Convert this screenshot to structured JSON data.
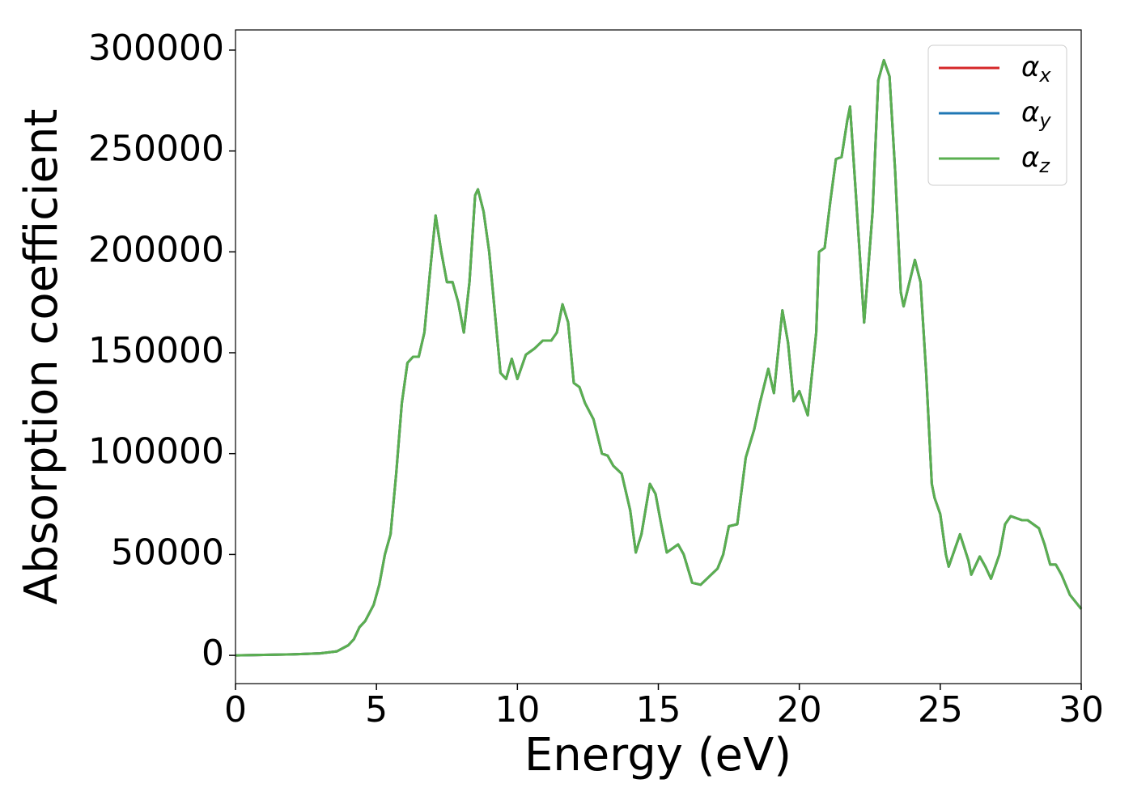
{
  "chart_data": {
    "type": "line",
    "xlabel": "Energy (eV)",
    "ylabel": "Absorption coefficient",
    "x": [
      0,
      2,
      3,
      3.6,
      4,
      4.2,
      4.4,
      4.6,
      4.9,
      5.1,
      5.3,
      5.5,
      5.7,
      5.9,
      6.1,
      6.3,
      6.5,
      6.7,
      6.9,
      7.1,
      7.3,
      7.5,
      7.7,
      7.9,
      8.1,
      8.3,
      8.5,
      8.6,
      8.8,
      9.0,
      9.2,
      9.4,
      9.6,
      9.8,
      10.0,
      10.3,
      10.6,
      10.9,
      11.2,
      11.4,
      11.6,
      11.8,
      12.0,
      12.2,
      12.4,
      12.7,
      13.0,
      13.2,
      13.4,
      13.7,
      14.0,
      14.2,
      14.4,
      14.7,
      14.9,
      15.1,
      15.3,
      15.7,
      15.9,
      16.2,
      16.5,
      16.8,
      17.1,
      17.3,
      17.5,
      17.8,
      18.1,
      18.4,
      18.6,
      18.9,
      19.1,
      19.4,
      19.6,
      19.8,
      20.0,
      20.3,
      20.6,
      20.7,
      20.9,
      21.1,
      21.3,
      21.5,
      21.7,
      21.8,
      22.0,
      22.3,
      22.6,
      22.8,
      23.0,
      23.2,
      23.4,
      23.6,
      23.7,
      24.1,
      24.3,
      24.5,
      24.7,
      24.8,
      25.0,
      25.2,
      25.3,
      25.7,
      26.0,
      26.1,
      26.4,
      26.6,
      26.8,
      27.1,
      27.3,
      27.5,
      27.9,
      28.1,
      28.3,
      28.5,
      28.7,
      28.9,
      29.1,
      29.3,
      29.6,
      30.0
    ],
    "series": [
      {
        "name": "αx",
        "color": "#d62728",
        "values": [
          0,
          500,
          1000,
          2000,
          5000,
          8000,
          14000,
          17000,
          25000,
          35000,
          50000,
          60000,
          90000,
          125000,
          145000,
          148000,
          148000,
          160000,
          190000,
          218000,
          200000,
          185000,
          185000,
          175000,
          160000,
          185000,
          228000,
          231000,
          220000,
          200000,
          170000,
          140000,
          137000,
          147000,
          137000,
          149000,
          152000,
          156000,
          156000,
          160000,
          174000,
          165000,
          135000,
          133000,
          125000,
          117000,
          100000,
          99000,
          94000,
          90000,
          72000,
          51000,
          60000,
          85000,
          80000,
          65000,
          51000,
          55000,
          50000,
          36000,
          35000,
          39000,
          43000,
          50000,
          64000,
          65000,
          98000,
          112000,
          125000,
          142000,
          130000,
          171000,
          155000,
          126000,
          131000,
          119000,
          160000,
          200000,
          202000,
          225000,
          246000,
          247000,
          265000,
          272000,
          230000,
          165000,
          220000,
          285000,
          295000,
          287000,
          240000,
          180000,
          173000,
          196000,
          185000,
          140000,
          85000,
          78000,
          70000,
          50000,
          44000,
          60000,
          47000,
          40000,
          49000,
          44000,
          38000,
          50000,
          65000,
          69000,
          67000,
          67000,
          65000,
          63000,
          55000,
          45000,
          45000,
          40000,
          30000,
          23000
        ]
      },
      {
        "name": "αy",
        "color": "#1f77b4",
        "values": [
          0,
          500,
          1000,
          2000,
          5000,
          8000,
          14000,
          17000,
          25000,
          35000,
          50000,
          60000,
          90000,
          125000,
          145000,
          148000,
          148000,
          160000,
          190000,
          218000,
          200000,
          185000,
          185000,
          175000,
          160000,
          185000,
          228000,
          231000,
          220000,
          200000,
          170000,
          140000,
          137000,
          147000,
          137000,
          149000,
          152000,
          156000,
          156000,
          160000,
          174000,
          165000,
          135000,
          133000,
          125000,
          117000,
          100000,
          99000,
          94000,
          90000,
          72000,
          51000,
          60000,
          85000,
          80000,
          65000,
          51000,
          55000,
          50000,
          36000,
          35000,
          39000,
          43000,
          50000,
          64000,
          65000,
          98000,
          112000,
          125000,
          142000,
          130000,
          171000,
          155000,
          126000,
          131000,
          119000,
          160000,
          200000,
          202000,
          225000,
          246000,
          247000,
          265000,
          272000,
          230000,
          165000,
          220000,
          285000,
          295000,
          287000,
          240000,
          180000,
          173000,
          196000,
          185000,
          140000,
          85000,
          78000,
          70000,
          50000,
          44000,
          60000,
          47000,
          40000,
          49000,
          44000,
          38000,
          50000,
          65000,
          69000,
          67000,
          67000,
          65000,
          63000,
          55000,
          45000,
          45000,
          40000,
          30000,
          23000
        ]
      },
      {
        "name": "αz",
        "color": "#5aaf50",
        "values": [
          0,
          500,
          1000,
          2000,
          5000,
          8000,
          14000,
          17000,
          25000,
          35000,
          50000,
          60000,
          90000,
          125000,
          145000,
          148000,
          148000,
          160000,
          190000,
          218000,
          200000,
          185000,
          185000,
          175000,
          160000,
          185000,
          228000,
          231000,
          220000,
          200000,
          170000,
          140000,
          137000,
          147000,
          137000,
          149000,
          152000,
          156000,
          156000,
          160000,
          174000,
          165000,
          135000,
          133000,
          125000,
          117000,
          100000,
          99000,
          94000,
          90000,
          72000,
          51000,
          60000,
          85000,
          80000,
          65000,
          51000,
          55000,
          50000,
          36000,
          35000,
          39000,
          43000,
          50000,
          64000,
          65000,
          98000,
          112000,
          125000,
          142000,
          130000,
          171000,
          155000,
          126000,
          131000,
          119000,
          160000,
          200000,
          202000,
          225000,
          246000,
          247000,
          265000,
          272000,
          230000,
          165000,
          220000,
          285000,
          295000,
          287000,
          240000,
          180000,
          173000,
          196000,
          185000,
          140000,
          85000,
          78000,
          70000,
          50000,
          44000,
          60000,
          47000,
          40000,
          49000,
          44000,
          38000,
          50000,
          65000,
          69000,
          67000,
          67000,
          65000,
          63000,
          55000,
          45000,
          45000,
          40000,
          30000,
          23000
        ]
      }
    ],
    "xlim": [
      0,
      30
    ],
    "xticks": [
      0,
      5,
      10,
      15,
      20,
      25,
      30
    ],
    "ylim": [
      -14000,
      310000
    ],
    "yticks": [
      0,
      50000,
      100000,
      150000,
      200000,
      250000,
      300000
    ],
    "grid": false,
    "legend": "upper right"
  }
}
